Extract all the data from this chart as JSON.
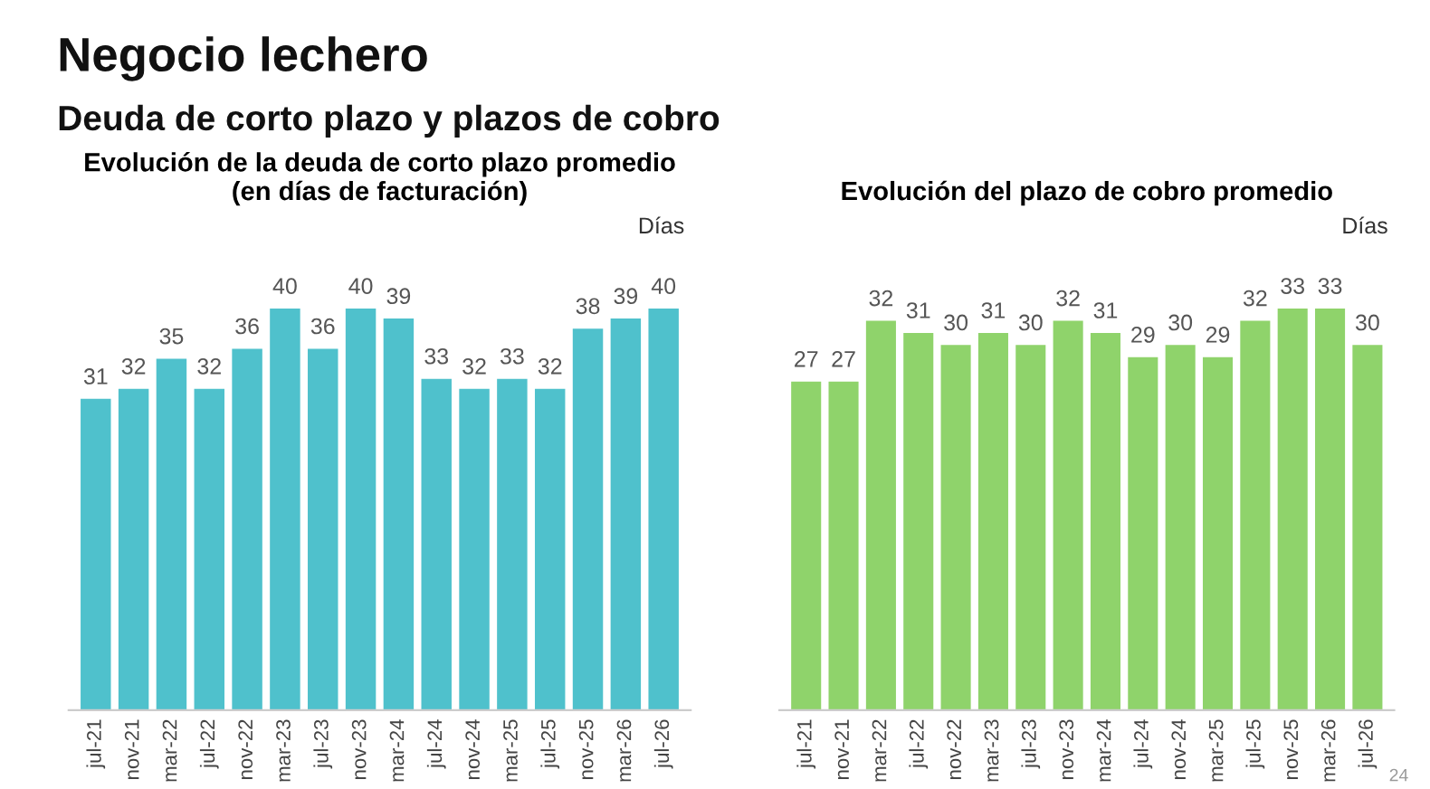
{
  "chart_data": [
    {
      "type": "other",
      "title": "Negocio lechero",
      "subtitle": "Deuda de corto plazo y plazos de cobro"
    },
    {
      "type": "bar",
      "title": "Evolución de la deuda de corto plazo promedio\n(en días de facturación)",
      "ylabel": "Días",
      "categories": [
        "jul-21",
        "nov-21",
        "mar-22",
        "jul-22",
        "nov-22",
        "mar-23",
        "jul-23",
        "nov-23",
        "mar-24",
        "jul-24",
        "nov-24",
        "mar-25",
        "jul-25",
        "nov-25",
        "mar-26",
        "jul-26"
      ],
      "values": [
        31,
        32,
        35,
        32,
        36,
        40,
        36,
        40,
        39,
        33,
        32,
        33,
        32,
        38,
        39,
        40
      ],
      "color": "#4fc1cc",
      "data_labels": true,
      "grid": false
    },
    {
      "type": "bar",
      "title": "Evolución del plazo de cobro promedio",
      "ylabel": "Días",
      "categories": [
        "jul-21",
        "nov-21",
        "mar-22",
        "jul-22",
        "nov-22",
        "mar-23",
        "jul-23",
        "nov-23",
        "mar-24",
        "jul-24",
        "nov-24",
        "mar-25",
        "jul-25",
        "nov-25",
        "mar-26",
        "jul-26"
      ],
      "values": [
        27,
        27,
        32,
        31,
        30,
        31,
        30,
        32,
        31,
        29,
        30,
        29,
        32,
        33,
        33,
        30
      ],
      "color": "#8fd36b",
      "data_labels": true,
      "grid": false,
      "annotations": [
        "24"
      ]
    }
  ]
}
